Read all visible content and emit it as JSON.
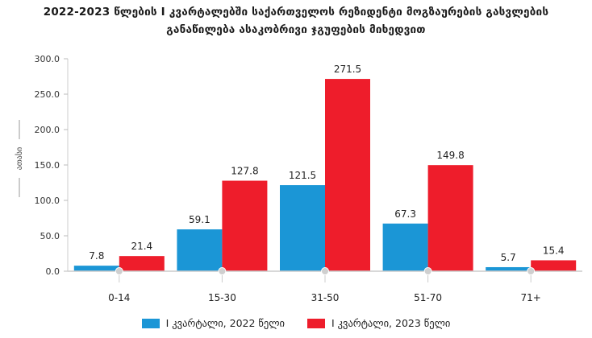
{
  "chart_data": {
    "type": "bar",
    "title_lines": [
      "2022-2023 წლების I კვარტალებში საქართველოს რეზიდენტი მოგზაურების გასვლების",
      "განაწილება ასაკობრივი ჯგუფების მიხედვით"
    ],
    "ylabel": "ათასი",
    "ylim": [
      0,
      300
    ],
    "yticks": [
      "0.0",
      "50.0",
      "100.0",
      "150.0",
      "200.0",
      "250.0",
      "300.0"
    ],
    "categories": [
      "0-14",
      "15-30",
      "31-50",
      "51-70",
      "71+"
    ],
    "series": [
      {
        "name": "I კვარტალი, 2022 წელი",
        "color": "#1b96d6",
        "values": [
          7.8,
          59.1,
          121.5,
          67.3,
          5.7
        ],
        "labels": [
          "7.8",
          "59.1",
          "121.5",
          "67.3",
          "5.7"
        ]
      },
      {
        "name": "I კვარტალი, 2023 წელი",
        "color": "#ee1d2b",
        "values": [
          21.4,
          127.8,
          271.5,
          149.8,
          15.4
        ],
        "labels": [
          "21.4",
          "127.8",
          "271.5",
          "149.8",
          "15.4"
        ]
      }
    ],
    "legend_position": "bottom-center",
    "grid": false
  }
}
